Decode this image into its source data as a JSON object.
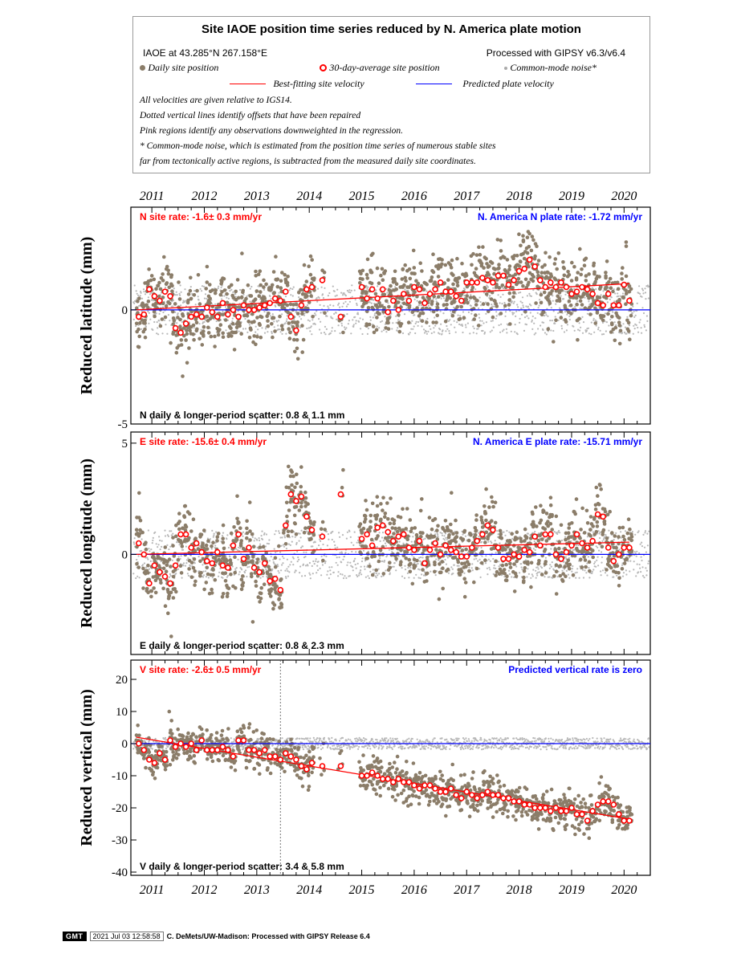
{
  "legend": {
    "title": "Site IAOE position time series reduced by N. America plate motion",
    "site_info": "IAOE at 43.285°N 267.158°E",
    "processed": "Processed with GIPSY v6.3/v6.4",
    "daily_label": "Daily site position",
    "avg_label": "30-day-average site position",
    "cm_label": "Common-mode noise*",
    "best_fit_label": "Best-fitting site velocity",
    "plate_label": "Predicted plate velocity",
    "notes": [
      "All velocities are given relative to IGS14.",
      "Dotted vertical lines identify offsets that have been repaired",
      "Pink regions identify any observations downweighted in the regression.",
      "* Common-mode noise, which is estimated from the position time series of numerous stable sites",
      "far from tectonically active regions, is subtracted from the measured daily site coordinates."
    ],
    "colors": {
      "daily": "#8b7d69",
      "avg_fill": "#ffffff",
      "avg_stroke": "#ff0000",
      "fit": "#ff0000",
      "plate": "#0000ff",
      "cm": "#b8b8b8"
    }
  },
  "footer": {
    "logo": "GMT",
    "timestamp": "2021 Jul 03 12:58:58",
    "credit": "C. DeMets/UW-Madison: Processed with GIPSY Release 6.4"
  },
  "chart_data": [
    {
      "type": "scatter",
      "component": "N",
      "ylabel": "Reduced latitude (mm)",
      "ylim": [
        -5,
        4.5
      ],
      "yticks": [
        -5,
        0
      ],
      "xlim": [
        2010.6,
        2020.5
      ],
      "xticks": [
        "2011",
        "2012",
        "2013",
        "2014",
        "2015",
        "2016",
        "2017",
        "2018",
        "2019",
        "2020"
      ],
      "site_rate_text": "N site rate:  -1.6± 0.3 mm/yr",
      "plate_rate_text": "N. America N plate rate: -1.72 mm/yr",
      "scatter_text": "N daily & longer-period scatter:   0.8 &   1.1 mm",
      "best_fit": {
        "x": [
          2010.7,
          2020.1
        ],
        "y": [
          0.0,
          1.15
        ]
      },
      "plate_line": 0,
      "averages": {
        "x": [
          2010.75,
          2010.85,
          2010.95,
          2011.05,
          2011.15,
          2011.25,
          2011.35,
          2011.45,
          2011.55,
          2011.65,
          2011.75,
          2011.85,
          2011.95,
          2012.05,
          2012.15,
          2012.25,
          2012.35,
          2012.45,
          2012.55,
          2012.65,
          2012.75,
          2012.85,
          2012.95,
          2013.05,
          2013.15,
          2013.25,
          2013.35,
          2013.45,
          2013.55,
          2013.65,
          2013.75,
          2013.85,
          2013.95,
          2014.05,
          2014.25,
          2014.6,
          2015.0,
          2015.1,
          2015.2,
          2015.3,
          2015.4,
          2015.5,
          2015.6,
          2015.7,
          2015.8,
          2015.9,
          2016.0,
          2016.1,
          2016.2,
          2016.3,
          2016.4,
          2016.5,
          2016.6,
          2016.7,
          2016.8,
          2016.9,
          2017.0,
          2017.1,
          2017.2,
          2017.3,
          2017.4,
          2017.5,
          2017.6,
          2017.7,
          2017.8,
          2017.9,
          2018.0,
          2018.1,
          2018.2,
          2018.3,
          2018.4,
          2018.5,
          2018.6,
          2018.7,
          2018.8,
          2018.9,
          2019.0,
          2019.1,
          2019.2,
          2019.3,
          2019.4,
          2019.5,
          2019.6,
          2019.7,
          2019.8,
          2019.9,
          2020.0,
          2020.1
        ],
        "y": [
          -0.3,
          -0.2,
          0.9,
          0.6,
          0.4,
          0.8,
          0.6,
          -0.8,
          -1.0,
          -0.6,
          -0.3,
          -0.2,
          -0.3,
          0.1,
          -0.1,
          -0.3,
          0.3,
          -0.2,
          0.0,
          -0.3,
          0.2,
          0.0,
          0.0,
          0.1,
          0.2,
          0.3,
          0.5,
          0.4,
          0.8,
          -0.3,
          -0.9,
          0.2,
          0.9,
          1.0,
          1.3,
          -0.3,
          1.0,
          0.5,
          0.9,
          0.5,
          0.9,
          -0.1,
          0.4,
          0.0,
          0.7,
          0.4,
          1.0,
          0.9,
          0.3,
          0.7,
          0.9,
          1.2,
          0.8,
          0.8,
          0.6,
          0.4,
          1.2,
          1.2,
          1.2,
          1.4,
          1.3,
          1.2,
          1.5,
          1.5,
          1.1,
          1.3,
          1.7,
          1.8,
          2.2,
          1.9,
          1.3,
          1.0,
          1.2,
          1.0,
          1.2,
          1.0,
          0.7,
          0.8,
          1.0,
          0.9,
          0.7,
          0.3,
          0.2,
          0.7,
          0.2,
          0.2,
          1.1,
          0.4
        ]
      }
    },
    {
      "type": "scatter",
      "component": "E",
      "ylabel": "Reduced longitude (mm)",
      "ylim": [
        -4.5,
        5.5
      ],
      "yticks": [
        0,
        5
      ],
      "xlim": [
        2010.6,
        2020.5
      ],
      "site_rate_text": "E site rate:  -15.6± 0.4 mm/yr",
      "plate_rate_text": "N. America E plate rate: -15.71 mm/yr",
      "scatter_text": "E daily & longer-period scatter:   0.8 &   2.3 mm",
      "best_fit": {
        "x": [
          2010.7,
          2020.1
        ],
        "y": [
          0.0,
          0.55
        ]
      },
      "plate_line": 0,
      "averages": {
        "x": [
          2010.75,
          2010.85,
          2010.95,
          2011.05,
          2011.15,
          2011.25,
          2011.35,
          2011.45,
          2011.55,
          2011.65,
          2011.75,
          2011.85,
          2011.95,
          2012.05,
          2012.15,
          2012.25,
          2012.35,
          2012.45,
          2012.55,
          2012.65,
          2012.75,
          2012.85,
          2012.95,
          2013.05,
          2013.15,
          2013.25,
          2013.35,
          2013.45,
          2013.55,
          2013.65,
          2013.75,
          2013.85,
          2013.95,
          2014.05,
          2014.25,
          2014.6,
          2015.0,
          2015.1,
          2015.2,
          2015.3,
          2015.4,
          2015.5,
          2015.6,
          2015.7,
          2015.8,
          2015.9,
          2016.0,
          2016.1,
          2016.2,
          2016.3,
          2016.4,
          2016.5,
          2016.6,
          2016.7,
          2016.8,
          2016.9,
          2017.0,
          2017.1,
          2017.2,
          2017.3,
          2017.4,
          2017.5,
          2017.6,
          2017.7,
          2017.8,
          2017.9,
          2018.0,
          2018.1,
          2018.2,
          2018.3,
          2018.4,
          2018.5,
          2018.6,
          2018.7,
          2018.8,
          2018.9,
          2019.0,
          2019.1,
          2019.2,
          2019.3,
          2019.4,
          2019.5,
          2019.6,
          2019.7,
          2019.8,
          2019.9,
          2020.0,
          2020.1
        ],
        "y": [
          0.5,
          0.0,
          -1.3,
          -0.5,
          -0.8,
          -1.0,
          -1.3,
          -0.5,
          0.9,
          0.9,
          0.3,
          0.5,
          0.1,
          -0.3,
          -0.4,
          0.1,
          -0.5,
          -0.6,
          0.4,
          0.9,
          -0.2,
          0.3,
          -0.6,
          -0.8,
          -0.4,
          -1.2,
          -1.1,
          -1.6,
          1.3,
          2.7,
          2.4,
          2.6,
          1.7,
          1.1,
          0.8,
          2.7,
          0.7,
          0.9,
          0.4,
          1.2,
          1.3,
          1.0,
          0.6,
          0.8,
          0.9,
          0.3,
          0.2,
          0.6,
          -0.4,
          0.2,
          0.5,
          0.0,
          0.4,
          0.2,
          0.1,
          -0.1,
          -0.1,
          0.3,
          0.6,
          0.9,
          1.3,
          1.1,
          0.3,
          -0.2,
          -0.2,
          0.0,
          -0.1,
          0.2,
          0.1,
          0.8,
          0.4,
          0.9,
          0.9,
          0.0,
          -0.2,
          0.1,
          0.4,
          0.9,
          0.5,
          0.3,
          0.6,
          1.8,
          1.7,
          0.3,
          -0.3,
          0.0,
          0.3,
          0.3
        ]
      }
    },
    {
      "type": "scatter",
      "component": "V",
      "ylabel": "Reduced vertical (mm)",
      "ylim": [
        -41,
        26
      ],
      "yticks": [
        -40,
        -30,
        -20,
        -10,
        0,
        10,
        20
      ],
      "xlim": [
        2010.6,
        2020.5
      ],
      "xticks": [
        "2011",
        "2012",
        "2013",
        "2014",
        "2015",
        "2016",
        "2017",
        "2018",
        "2019",
        "2020"
      ],
      "site_rate_text": "V site rate:  -2.6± 0.5 mm/yr",
      "plate_rate_text": "Predicted vertical rate is zero",
      "scatter_text": "V daily & longer-period scatter:   3.4 &   5.8 mm",
      "best_fit": {
        "x": [
          2010.7,
          2020.1
        ],
        "y": [
          2.0,
          -23.5
        ]
      },
      "plate_line": 0,
      "offset_line": 2013.45,
      "averages": {
        "x": [
          2010.75,
          2010.85,
          2010.95,
          2011.05,
          2011.15,
          2011.25,
          2011.35,
          2011.45,
          2011.55,
          2011.65,
          2011.75,
          2011.85,
          2011.95,
          2012.05,
          2012.15,
          2012.25,
          2012.35,
          2012.45,
          2012.55,
          2012.65,
          2012.75,
          2012.85,
          2012.95,
          2013.05,
          2013.15,
          2013.25,
          2013.35,
          2013.45,
          2013.55,
          2013.65,
          2013.75,
          2013.85,
          2013.95,
          2014.05,
          2014.25,
          2014.6,
          2015.0,
          2015.1,
          2015.2,
          2015.3,
          2015.4,
          2015.5,
          2015.6,
          2015.7,
          2015.8,
          2015.9,
          2016.0,
          2016.1,
          2016.2,
          2016.3,
          2016.4,
          2016.5,
          2016.6,
          2016.7,
          2016.8,
          2016.9,
          2017.0,
          2017.1,
          2017.2,
          2017.3,
          2017.4,
          2017.5,
          2017.6,
          2017.7,
          2017.8,
          2017.9,
          2018.0,
          2018.1,
          2018.2,
          2018.3,
          2018.4,
          2018.5,
          2018.6,
          2018.7,
          2018.8,
          2018.9,
          2019.0,
          2019.1,
          2019.2,
          2019.3,
          2019.4,
          2019.5,
          2019.6,
          2019.7,
          2019.8,
          2019.9,
          2020.0,
          2020.1
        ],
        "y": [
          0.0,
          -2.0,
          -5.0,
          -6.0,
          -3.0,
          -5.0,
          1.0,
          -1.0,
          0.0,
          -1.0,
          0.0,
          -2.0,
          1.0,
          -2.0,
          -2.0,
          -2.0,
          -1.0,
          -2.0,
          -4.0,
          1.0,
          1.0,
          -2.0,
          -2.0,
          -3.0,
          -2.0,
          -4.0,
          -4.0,
          -5.0,
          -3.0,
          -4.0,
          -5.0,
          -7.0,
          -8.0,
          -6.0,
          -7.0,
          -7.0,
          -10.0,
          -10.0,
          -9.0,
          -10.0,
          -11.0,
          -11.0,
          -12.0,
          -11.0,
          -12.0,
          -12.0,
          -13.0,
          -14.0,
          -13.0,
          -13.0,
          -14.0,
          -15.0,
          -15.0,
          -14.0,
          -16.0,
          -17.0,
          -15.0,
          -16.0,
          -17.0,
          -16.0,
          -15.0,
          -16.0,
          -16.0,
          -17.0,
          -17.0,
          -18.0,
          -18.0,
          -19.0,
          -19.0,
          -20.0,
          -20.0,
          -20.0,
          -21.0,
          -20.0,
          -21.0,
          -21.0,
          -20.0,
          -22.0,
          -22.0,
          -24.0,
          -21.0,
          -19.0,
          -18.0,
          -18.0,
          -19.0,
          -22.0,
          -24.0,
          -24.0
        ]
      }
    }
  ]
}
